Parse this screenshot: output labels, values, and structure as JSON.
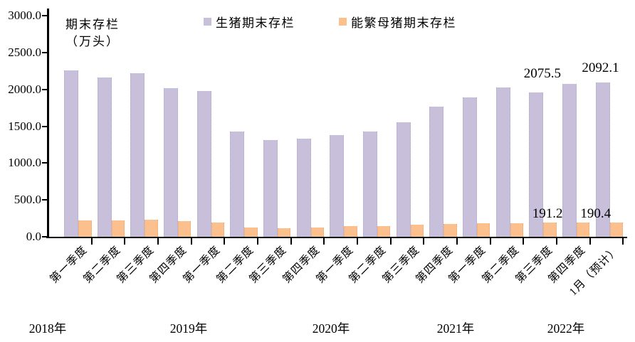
{
  "chart_data": {
    "type": "bar",
    "title": "期末存栏（万头）",
    "title_lines": [
      "期末存栏",
      "（万头）"
    ],
    "unit": "万头",
    "categories": [
      "第一季度",
      "第二季度",
      "第三季度",
      "第四季度",
      "第一季度",
      "第二季度",
      "第三季度",
      "第四季度",
      "第一季度",
      "第二季度",
      "第三季度",
      "第四季度",
      "第一季度",
      "第二季度",
      "第三季度",
      "第四季度",
      "1月（预计）"
    ],
    "year_groups": [
      "2018年",
      "2019年",
      "2020年",
      "2021年",
      "2022年"
    ],
    "series": [
      {
        "name": "生猪期末存栏",
        "color": "#C8BFDB",
        "values": [
          2260,
          2165,
          2215,
          2020,
          1975,
          1430,
          1310,
          1335,
          1375,
          1430,
          1555,
          1765,
          1890,
          2030,
          1955,
          2075.5,
          2092.1
        ]
      },
      {
        "name": "能繁母猪期末存栏",
        "color": "#FBC08E",
        "values": [
          220,
          220,
          232,
          210,
          196,
          121,
          118,
          121,
          143,
          143,
          160,
          178,
          182,
          188,
          191,
          191.2,
          190.4
        ]
      }
    ],
    "data_labels": [
      {
        "series": 0,
        "index": 15,
        "text": "2075.5"
      },
      {
        "series": 0,
        "index": 16,
        "text": "2092.1"
      },
      {
        "series": 1,
        "index": 15,
        "text": "191.2"
      },
      {
        "series": 1,
        "index": 16,
        "text": "190.4"
      }
    ],
    "y_axis": {
      "min": 0,
      "max": 3000,
      "step": 500,
      "tick_labels": [
        "3000.0",
        "2500.0",
        "2000.0",
        "1500.0",
        "1000.0",
        "500.0",
        "0.0"
      ]
    },
    "legend_position": "top",
    "grid": false
  }
}
